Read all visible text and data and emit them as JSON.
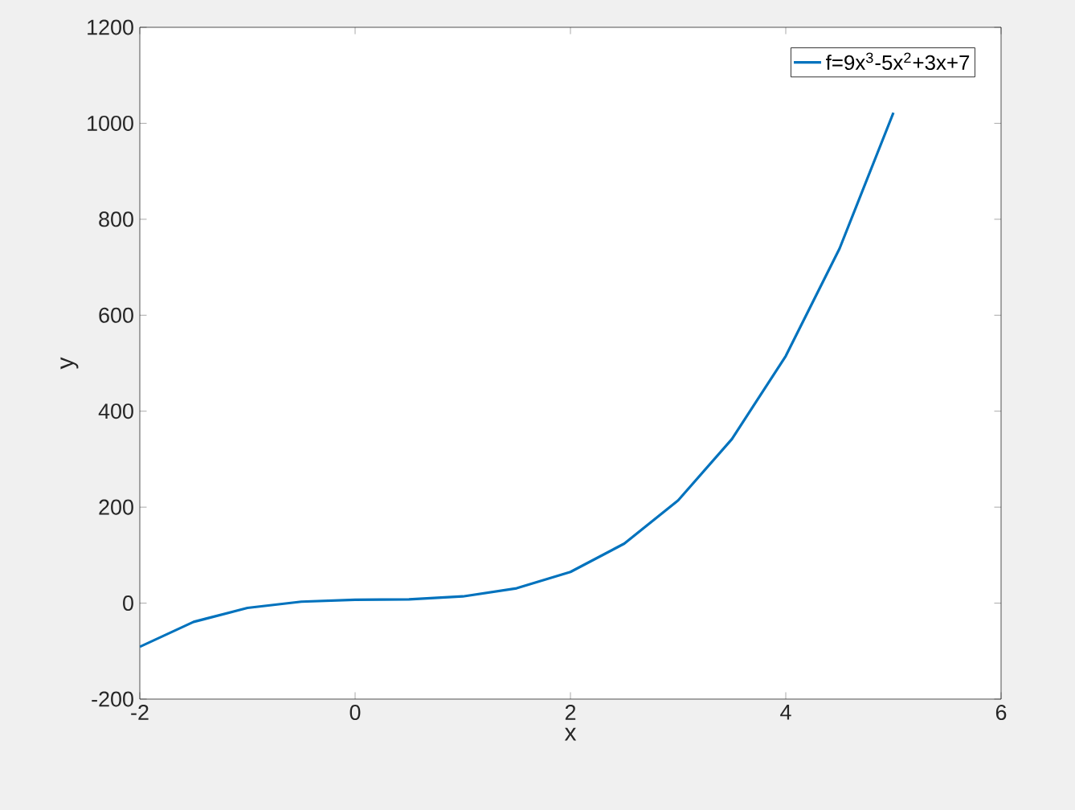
{
  "chart_data": {
    "type": "line",
    "xlabel": "x",
    "ylabel": "y",
    "x": [
      -2,
      -1.5,
      -1,
      -0.5,
      0,
      0.5,
      1,
      1.5,
      2,
      2.5,
      3,
      3.5,
      4,
      4.5,
      5
    ],
    "series": [
      {
        "name": "f=9x$^{3}$-5x$^{2}$+3x+7",
        "color": "#0072bd",
        "values": [
          -91,
          -39,
          -10,
          3,
          7,
          8,
          14,
          31,
          65,
          124,
          214,
          342,
          515,
          739,
          1022
        ]
      }
    ],
    "xlim": [
      -2,
      6
    ],
    "xticks": [
      -2,
      0,
      2,
      4,
      6
    ],
    "ylim": [
      -200,
      1200
    ],
    "yticks": [
      -200,
      0,
      200,
      400,
      600,
      800,
      1000,
      1200
    ],
    "legend": "top right",
    "marker": "none",
    "line_style": "solid"
  }
}
